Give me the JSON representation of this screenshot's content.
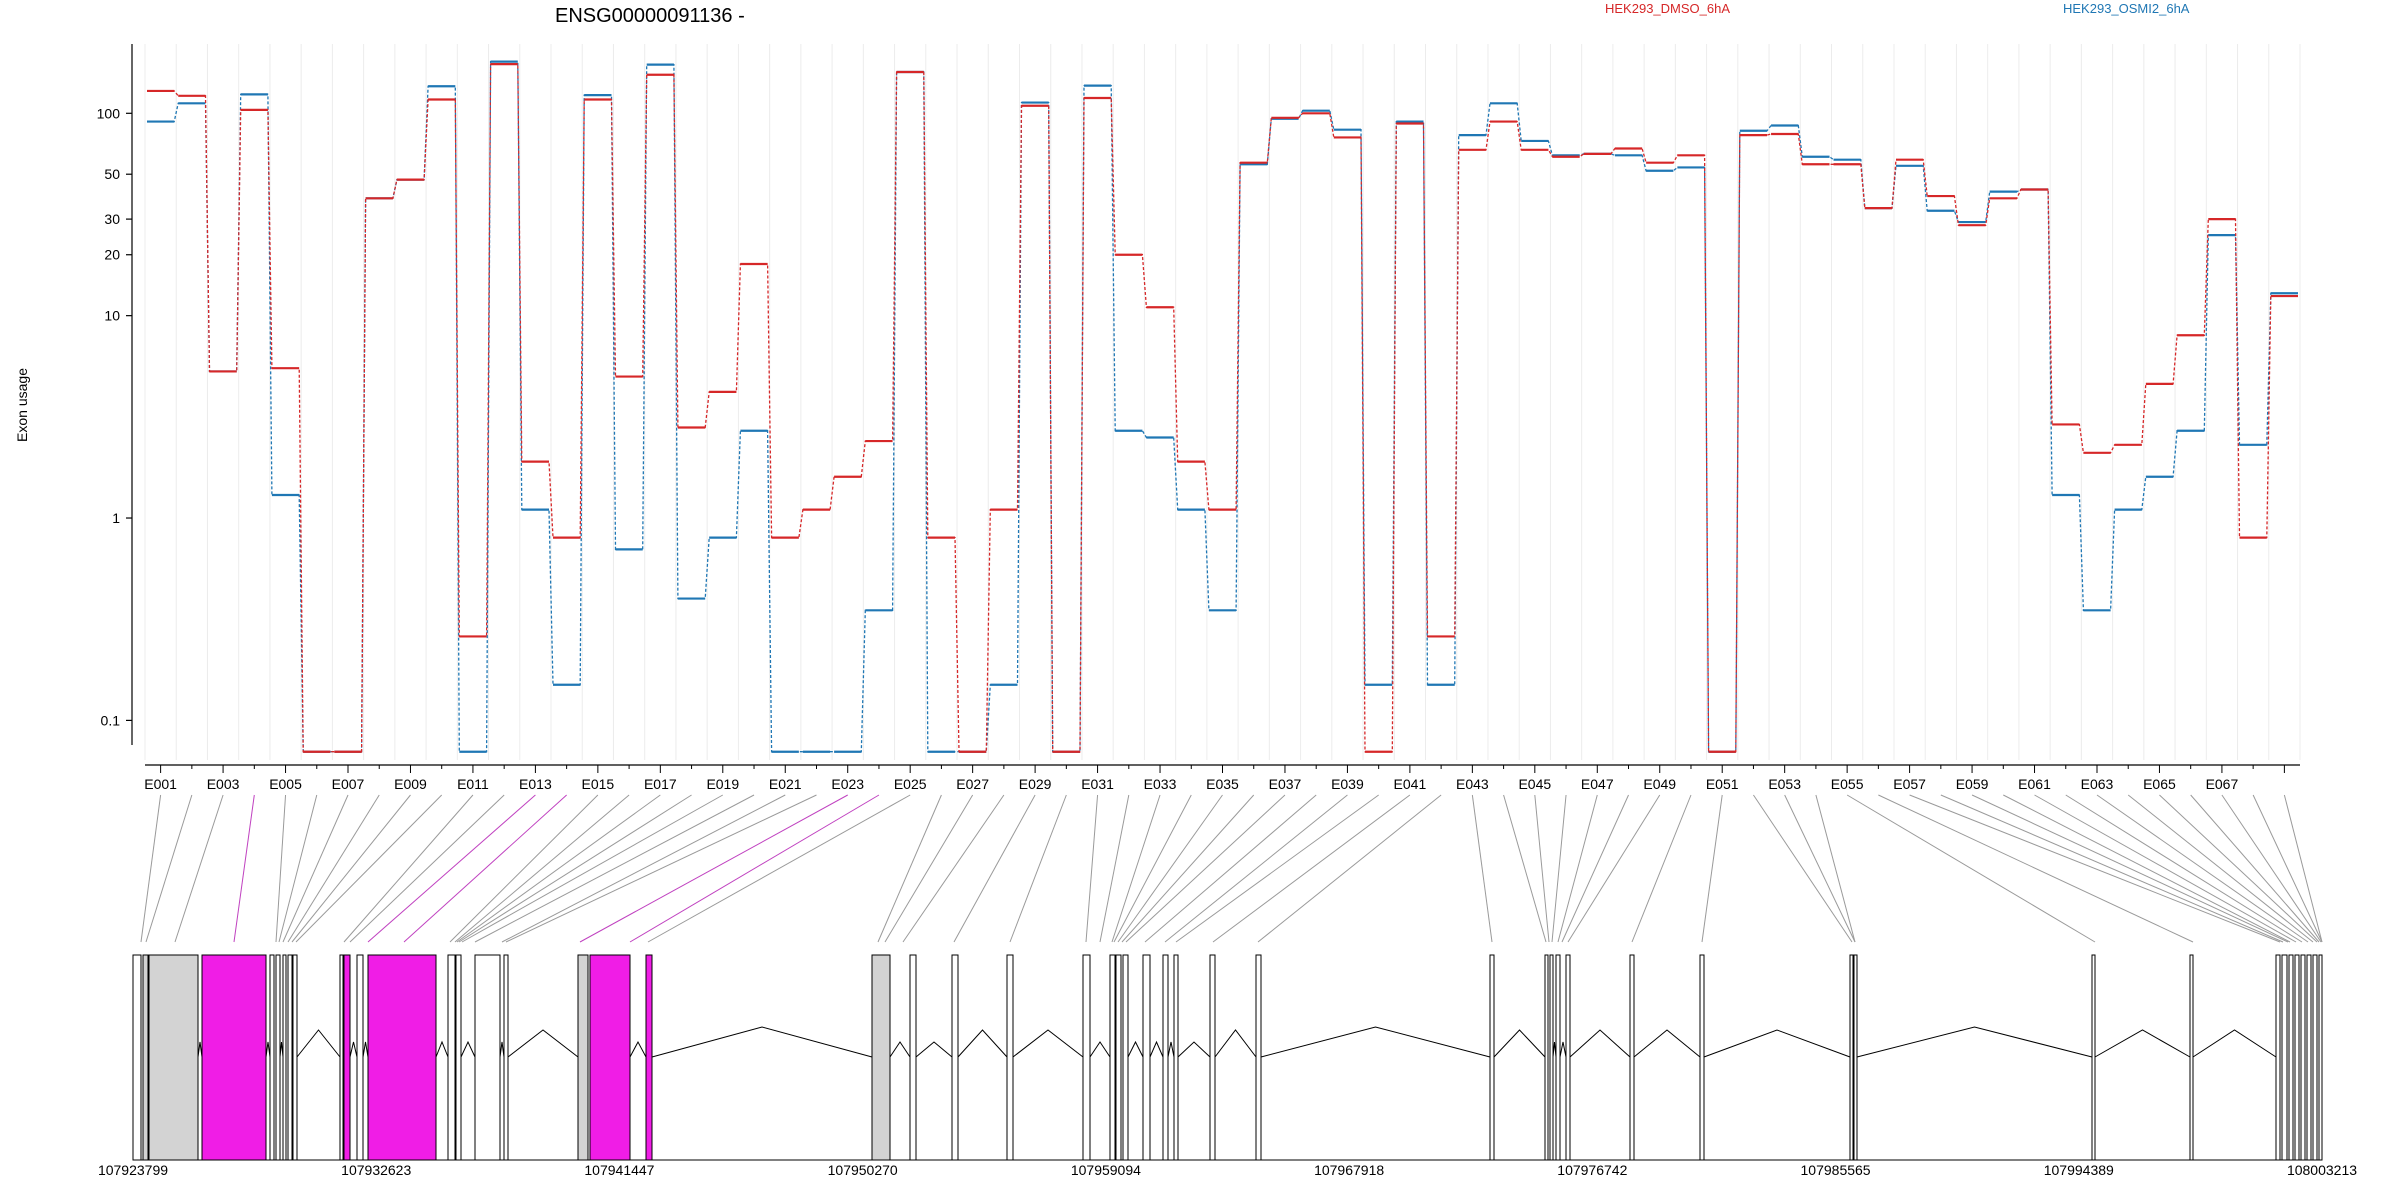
{
  "chart_data": {
    "type": "line",
    "title": "ENSG00000091136 -",
    "ylabel": "Exon usage",
    "xlabel": "",
    "y_scale": "log",
    "ylim": [
      0.08,
      220
    ],
    "y_ticks": [
      {
        "value": 0.1,
        "label": "0.1"
      },
      {
        "value": 1,
        "label": "1"
      },
      {
        "value": 10,
        "label": "10"
      },
      {
        "value": 20,
        "label": "20"
      },
      {
        "value": 30,
        "label": "30"
      },
      {
        "value": 50,
        "label": "50"
      },
      {
        "value": 100,
        "label": "100"
      }
    ],
    "grid": "vertical, light",
    "legend_placement": "top",
    "exon_labels": [
      "E001",
      "E003",
      "E005",
      "E007",
      "E009",
      "E011",
      "E013",
      "E015",
      "E017",
      "E019",
      "E021",
      "E023",
      "E025",
      "E027",
      "E029",
      "E031",
      "E033",
      "E035",
      "E037",
      "E039",
      "E041",
      "E043",
      "E045",
      "E047",
      "E049",
      "E051",
      "E053",
      "E055",
      "E057",
      "E059",
      "E061",
      "E063",
      "E065",
      "E067"
    ],
    "series": [
      {
        "name": "HEK293_DMSO_6hA",
        "color": "#d62728",
        "values": [
          129,
          122,
          5.3,
          104,
          5.5,
          0.07,
          0.07,
          38,
          47,
          117,
          0.26,
          175,
          1.9,
          0.8,
          117,
          5,
          155,
          2.8,
          4.2,
          18,
          0.8,
          1.1,
          1.6,
          2.4,
          160,
          0.8,
          0.07,
          1.1,
          109,
          0.07,
          119,
          20,
          11,
          1.9,
          1.1,
          57,
          95,
          100,
          76,
          0.07,
          89,
          0.26,
          66,
          91,
          66,
          61,
          63,
          67,
          57,
          62,
          0.07,
          78,
          79,
          56,
          56,
          34,
          59,
          39,
          28,
          38,
          42,
          2.9,
          2.1,
          2.3,
          4.6,
          8,
          30,
          0.8,
          12.5
        ],
        "style": "dashed-steps"
      },
      {
        "name": "HEK293_OSMI2_6hA",
        "color": "#1f77b4",
        "values": [
          91,
          112,
          5.3,
          124,
          1.3,
          0.07,
          0.07,
          38,
          47,
          136,
          0.07,
          180,
          1.1,
          0.15,
          123,
          0.7,
          174,
          0.4,
          0.8,
          2.7,
          0.07,
          0.07,
          0.07,
          0.35,
          160,
          0.07,
          0.07,
          0.15,
          113,
          0.07,
          137,
          2.7,
          2.5,
          1.1,
          0.35,
          56,
          94,
          103,
          83,
          0.15,
          91,
          0.15,
          78,
          112,
          73,
          62,
          63,
          62,
          52,
          54,
          0.07,
          82,
          87,
          61,
          59,
          34,
          55,
          33,
          29,
          41,
          42,
          1.3,
          0.35,
          1.1,
          1.6,
          2.7,
          25,
          2.3,
          12.9
        ],
        "style": "dashed-steps"
      }
    ]
  },
  "gene_model": {
    "coord_labels": [
      "107923799",
      "107932623",
      "107941447",
      "107950270",
      "107959094",
      "107967918",
      "107976742",
      "107985565",
      "107994389",
      "108003213"
    ],
    "colors": {
      "highlight": "#f01de6",
      "shaded": "#d3d3d3",
      "outline": "#000000",
      "link_gray": "#9a9a9a",
      "link_magenta": "#c042c0"
    }
  }
}
